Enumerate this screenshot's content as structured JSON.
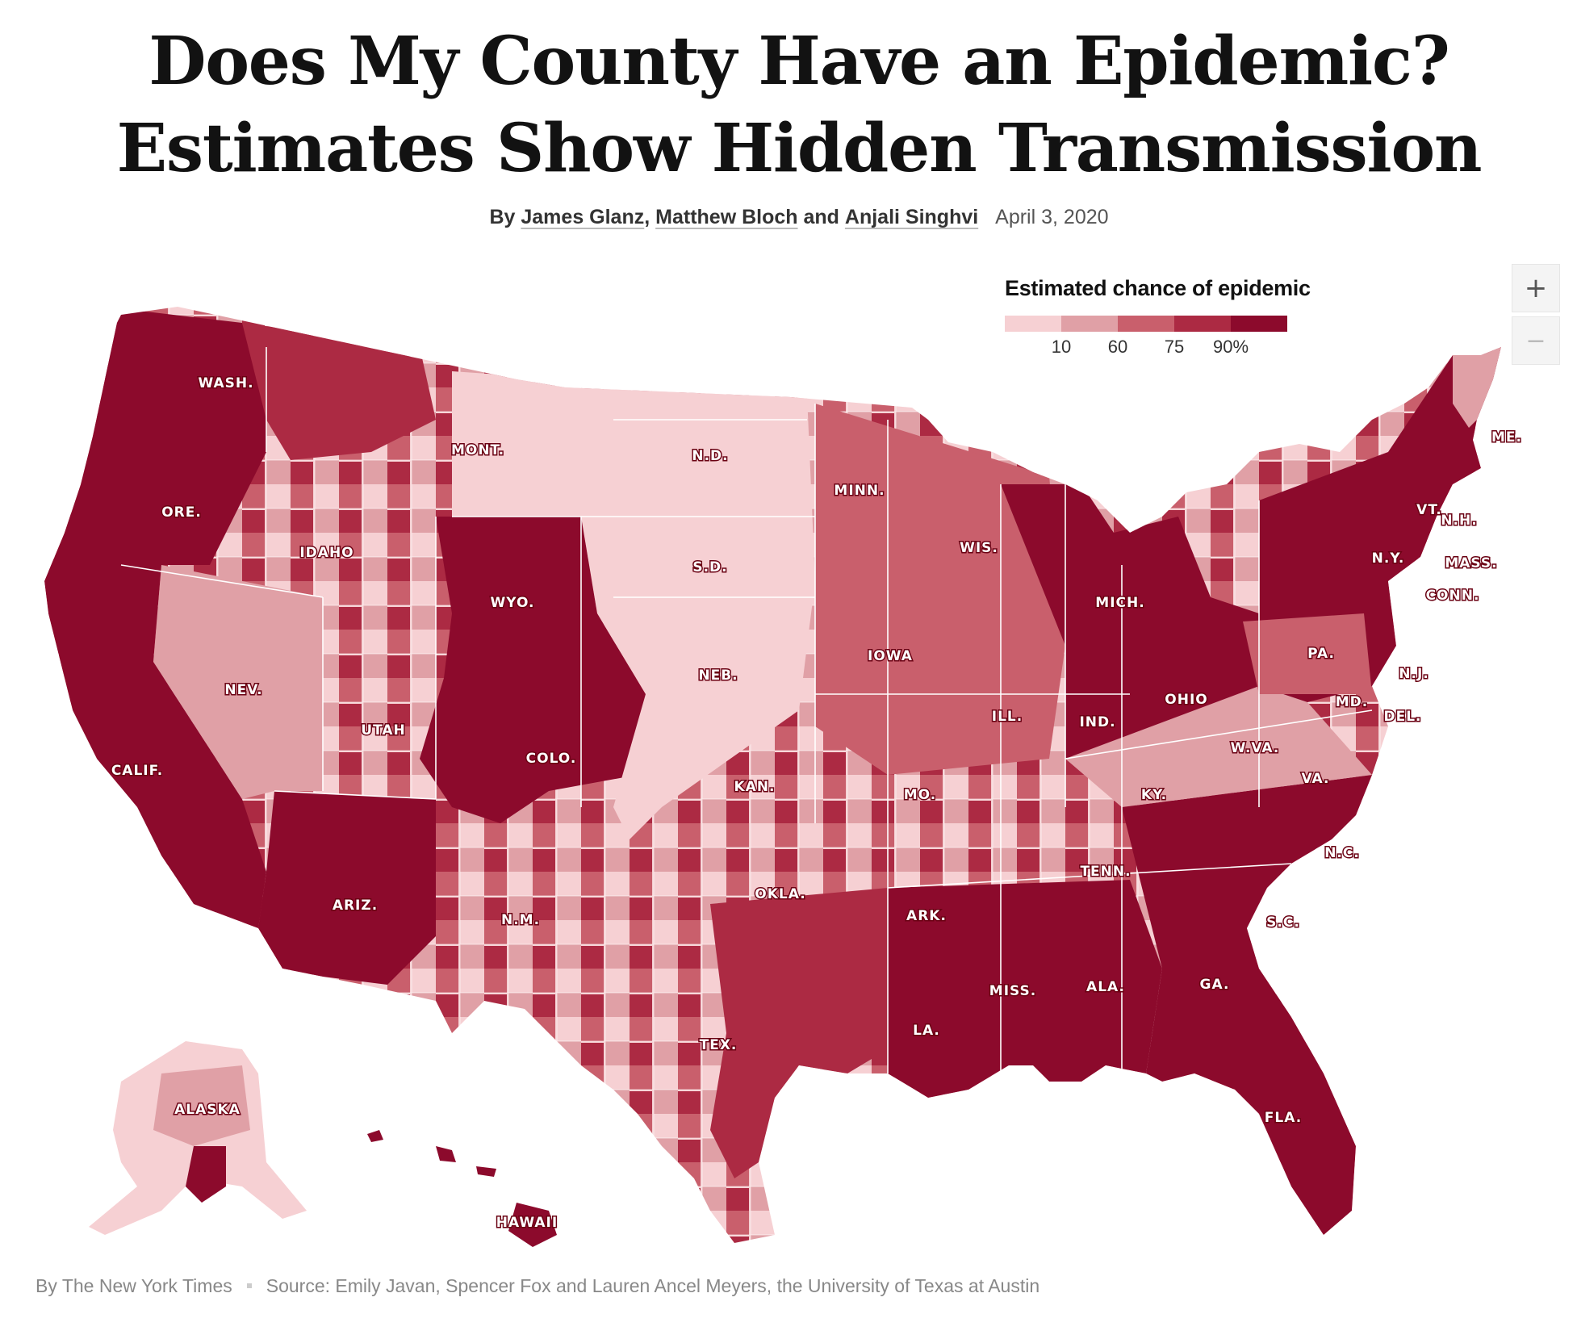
{
  "headline": {
    "line1": "Does My County Have an Epidemic?",
    "line2": "Estimates Show Hidden Transmission"
  },
  "byline": {
    "by": "By",
    "authors": [
      "James Glanz",
      "Matthew Bloch",
      "Anjali Singhvi"
    ],
    "sep1": ",",
    "and": "and",
    "date": "April 3, 2020"
  },
  "zoom": {
    "in_label": "+",
    "out_label": "−"
  },
  "legend": {
    "title": "Estimated chance of epidemic",
    "ticks": [
      "10",
      "60",
      "75",
      "90%"
    ],
    "colors": [
      "#f6d0d3",
      "#e0a0a6",
      "#c95f6c",
      "#ac2a43",
      "#8c0a2c"
    ]
  },
  "map": {
    "colors": {
      "very_low": "#f6d0d3",
      "low": "#e0a0a6",
      "mid": "#c95f6c",
      "high": "#ac2a43",
      "very_high": "#8c0a2c",
      "border": "#ffffff"
    },
    "labels": [
      {
        "id": "wash",
        "text": "WASH."
      },
      {
        "id": "ore",
        "text": "ORE."
      },
      {
        "id": "calif",
        "text": "CALIF."
      },
      {
        "id": "idaho",
        "text": "IDAHO"
      },
      {
        "id": "nev",
        "text": "NEV."
      },
      {
        "id": "mont",
        "text": "MONT."
      },
      {
        "id": "wyo",
        "text": "WYO."
      },
      {
        "id": "utah",
        "text": "UTAH"
      },
      {
        "id": "ariz",
        "text": "ARIZ."
      },
      {
        "id": "colo",
        "text": "COLO."
      },
      {
        "id": "nm",
        "text": "N.M."
      },
      {
        "id": "nd",
        "text": "N.D."
      },
      {
        "id": "sd",
        "text": "S.D."
      },
      {
        "id": "neb",
        "text": "NEB."
      },
      {
        "id": "kan",
        "text": "KAN."
      },
      {
        "id": "okla",
        "text": "OKLA."
      },
      {
        "id": "tex",
        "text": "TEX."
      },
      {
        "id": "minn",
        "text": "MINN."
      },
      {
        "id": "iowa",
        "text": "IOWA"
      },
      {
        "id": "mo",
        "text": "MO."
      },
      {
        "id": "ark",
        "text": "ARK."
      },
      {
        "id": "la",
        "text": "LA."
      },
      {
        "id": "wis",
        "text": "WIS."
      },
      {
        "id": "ill",
        "text": "ILL."
      },
      {
        "id": "mich",
        "text": "MICH."
      },
      {
        "id": "ind",
        "text": "IND."
      },
      {
        "id": "ohio",
        "text": "OHIO"
      },
      {
        "id": "ky",
        "text": "KY."
      },
      {
        "id": "tenn",
        "text": "TENN."
      },
      {
        "id": "miss",
        "text": "MISS."
      },
      {
        "id": "ala",
        "text": "ALA."
      },
      {
        "id": "ga",
        "text": "GA."
      },
      {
        "id": "fla",
        "text": "FLA."
      },
      {
        "id": "sc",
        "text": "S.C."
      },
      {
        "id": "nc",
        "text": "N.C."
      },
      {
        "id": "va",
        "text": "VA."
      },
      {
        "id": "wva",
        "text": "W.VA."
      },
      {
        "id": "pa",
        "text": "PA."
      },
      {
        "id": "ny",
        "text": "N.Y."
      },
      {
        "id": "vt",
        "text": "VT."
      },
      {
        "id": "nh",
        "text": "N.H."
      },
      {
        "id": "me",
        "text": "ME."
      },
      {
        "id": "mass",
        "text": "MASS."
      },
      {
        "id": "conn",
        "text": "CONN."
      },
      {
        "id": "nj",
        "text": "N.J."
      },
      {
        "id": "md",
        "text": "MD."
      },
      {
        "id": "del",
        "text": "DEL."
      },
      {
        "id": "alaska",
        "text": "ALASKA"
      },
      {
        "id": "hawaii",
        "text": "HAWAII"
      }
    ]
  },
  "footer": {
    "credit": "By The New York Times",
    "source": "Source: Emily Javan, Spencer Fox and Lauren Ancel Meyers, the University of Texas at Austin"
  }
}
